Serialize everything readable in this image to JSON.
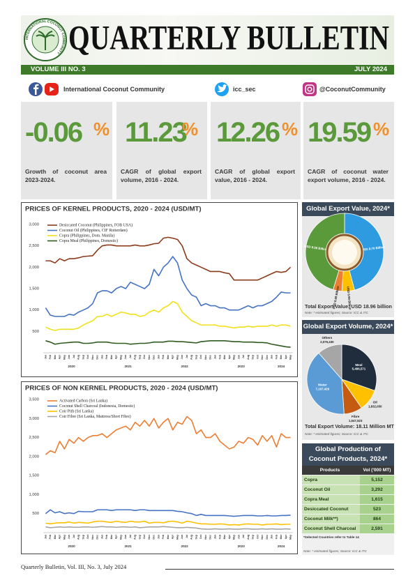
{
  "header": {
    "title": "QUARTERLY BULLETIN",
    "logo_text": "INTERNATIONAL COCONUT COMMUNITY",
    "volume": "VOLUME III NO. 3",
    "date": "JULY 2024"
  },
  "social": [
    {
      "label": "International Coconut Community"
    },
    {
      "label": "icc_sec"
    },
    {
      "label": "@CoconutCommunity"
    }
  ],
  "stats": [
    {
      "value": -0.06,
      "unit": "%",
      "text": "Growth of coconut area 2023-2024."
    },
    {
      "value": 11.23,
      "unit": "%",
      "text": "CAGR of global export volume, 2016 - 2024."
    },
    {
      "value": 12.26,
      "unit": "%",
      "text": "CAGR of global export value, 2016 - 2024."
    },
    {
      "value": 19.59,
      "unit": "%",
      "text": "CAGR of coconut water export volume, 2016 - 2024."
    }
  ],
  "chart_data": [
    {
      "type": "line",
      "title": "PRICES OF KERNEL PRODUCTS, 2020 - 2024 (USD/MT)",
      "categories": [
        "Jan",
        "Feb",
        "Mar",
        "Apr",
        "May",
        "Jun",
        "Jul",
        "Aug",
        "Sep",
        "Oct",
        "Nov",
        "Dec",
        "Jan",
        "Feb",
        "Mar",
        "Apr",
        "May",
        "Jun",
        "Jul",
        "Aug",
        "Sep",
        "Oct",
        "Nov",
        "Dec",
        "Jan",
        "Feb",
        "Mar",
        "Apr",
        "May",
        "Jun",
        "Jul",
        "Aug",
        "Sep",
        "Oct",
        "Nov",
        "Dec",
        "Jan",
        "Feb",
        "Mar",
        "Apr",
        "May",
        "Jun",
        "Jul",
        "Aug",
        "Sep",
        "Oct",
        "Nov",
        "Dec",
        "Jan",
        "Feb",
        "Mar",
        "Apr",
        "May"
      ],
      "year_labels": [
        "2020",
        "2021",
        "2022",
        "2023",
        "2024"
      ],
      "ylim": [
        0,
        3000
      ],
      "yticks": [
        500,
        {
          "value": 1000,
          "label": "1,000"
        },
        {
          "value": 1500,
          "label": "1,500"
        },
        {
          "value": 2000,
          "label": "2,000"
        },
        {
          "value": 2500,
          "label": "2,500"
        },
        {
          "value": 3000,
          "label": "3,000"
        }
      ],
      "grid": false,
      "series": [
        {
          "name": "Desiccated Coconut (Philippines, FOB USA)",
          "color": "#8b3a1a",
          "values": [
            2150,
            2150,
            2100,
            2200,
            2150,
            2200,
            2200,
            2220,
            2250,
            2260,
            2270,
            2400,
            2500,
            2520,
            2520,
            2500,
            2500,
            2500,
            2500,
            2520,
            2500,
            2500,
            2520,
            2550,
            2560,
            2680,
            2700,
            2680,
            2650,
            2500,
            2200,
            2100,
            2050,
            2000,
            1950,
            1900,
            1900,
            1900,
            1870,
            1850,
            1700,
            1700,
            1700,
            1700,
            1700,
            1700,
            1750,
            1800,
            1850,
            1900,
            1880,
            1900,
            2000
          ]
        },
        {
          "name": "Coconut Oil (Philippines, CIF Rotterdam)",
          "color": "#4472c4",
          "values": [
            1050,
            880,
            850,
            850,
            850,
            900,
            880,
            950,
            1000,
            1050,
            1150,
            1400,
            1450,
            1450,
            1400,
            1500,
            1550,
            1500,
            1650,
            1600,
            1550,
            1500,
            1600,
            1950,
            1800,
            2000,
            2100,
            2250,
            2100,
            1700,
            1500,
            1350,
            1300,
            1100,
            1150,
            1100,
            1100,
            1050,
            1050,
            1000,
            1000,
            1000,
            1050,
            1100,
            1050,
            1100,
            1100,
            1150,
            1200,
            1300,
            1420,
            1400,
            1400
          ]
        },
        {
          "name": "Copra (Philippines, Dom. Manila)",
          "color": "#f2e01c",
          "values": [
            600,
            550,
            520,
            550,
            550,
            550,
            550,
            580,
            650,
            700,
            750,
            850,
            850,
            900,
            850,
            900,
            950,
            930,
            900,
            900,
            850,
            870,
            950,
            1000,
            950,
            1050,
            1100,
            1200,
            1150,
            950,
            850,
            750,
            700,
            650,
            650,
            650,
            650,
            620,
            620,
            600,
            580,
            600,
            600,
            620,
            600,
            620,
            620,
            620,
            650,
            620,
            650,
            650,
            620
          ]
        },
        {
          "name": "Copra Meal (Philippines, Domestic)",
          "color": "#2e5a1e",
          "values": [
            280,
            250,
            200,
            220,
            230,
            240,
            250,
            250,
            220,
            220,
            230,
            250,
            250,
            250,
            230,
            220,
            220,
            220,
            200,
            210,
            220,
            220,
            230,
            250,
            250,
            250,
            270,
            270,
            260,
            260,
            250,
            240,
            230,
            260,
            270,
            280,
            280,
            280,
            280,
            270,
            260,
            260,
            250,
            250,
            250,
            240,
            240,
            230,
            200,
            180,
            160,
            140,
            130
          ]
        }
      ]
    },
    {
      "type": "line",
      "title": "PRICES OF NON KERNEL PRODUCTS, 2020 - 2024 (USD/MT)",
      "categories": [
        "Jan",
        "Feb",
        "Mar",
        "Apr",
        "May",
        "Jun",
        "Jul",
        "Aug",
        "Sep",
        "Oct",
        "Nov",
        "Dec",
        "Jan",
        "Feb",
        "Mar",
        "Apr",
        "May",
        "Jun",
        "Jul",
        "Aug",
        "Sep",
        "Oct",
        "Nov",
        "Dec",
        "Jan",
        "Feb",
        "Mar",
        "Apr",
        "May",
        "Jun",
        "Jul",
        "Aug",
        "Sep",
        "Oct",
        "Nov",
        "Dec",
        "Jan",
        "Feb",
        "Mar",
        "Apr",
        "May",
        "Jun",
        "Jul",
        "Aug",
        "Sep",
        "Oct",
        "Nov",
        "Dec",
        "Jan",
        "Feb",
        "Mar",
        "Apr",
        "May"
      ],
      "year_labels": [
        "2020",
        "2021",
        "2022",
        "2023",
        "2024"
      ],
      "ylim": [
        0,
        3500
      ],
      "yticks": [
        500,
        {
          "value": 1000,
          "label": "1,000"
        },
        {
          "value": 1500,
          "label": "1,500"
        },
        {
          "value": 2000,
          "label": "2,000"
        },
        {
          "value": 2500,
          "label": "2,500"
        },
        {
          "value": 3000,
          "label": "3,000"
        },
        {
          "value": 3500,
          "label": "3,500"
        }
      ],
      "grid": false,
      "series": [
        {
          "name": "Activated Carbon (Sri Lanka)",
          "color": "#ed7d31",
          "values": [
            2050,
            2150,
            2100,
            2400,
            2200,
            2450,
            2350,
            2500,
            2400,
            2500,
            2550,
            2550,
            2600,
            2500,
            2600,
            2700,
            2750,
            2800,
            2700,
            2900,
            2800,
            2950,
            2800,
            3000,
            2750,
            2900,
            3000,
            2700,
            2900,
            2850,
            3050,
            2950,
            2600,
            2700,
            2500,
            2500,
            2600,
            2400,
            2300,
            2200,
            2250,
            2400,
            2350,
            2500,
            2450,
            2300,
            2550,
            2400,
            2550,
            2250,
            2600,
            2500,
            2500
          ]
        },
        {
          "name": "Coconut Shell Charcoal (Indonesia, Domestic)",
          "color": "#4472c4",
          "values": [
            500,
            600,
            520,
            550,
            500,
            520,
            500,
            560,
            550,
            550,
            550,
            600,
            600,
            600,
            580,
            600,
            600,
            600,
            600,
            580,
            600,
            600,
            580,
            580,
            580,
            580,
            580,
            580,
            560,
            550,
            520,
            500,
            450,
            480,
            450,
            450,
            450,
            450,
            450,
            440,
            430,
            440,
            450,
            450,
            450,
            440,
            440,
            450,
            440,
            440,
            450,
            450,
            460
          ]
        },
        {
          "name": "Coir Pith (Sri Lanka)",
          "color": "#ffc000",
          "values": [
            250,
            230,
            250,
            260,
            260,
            280,
            250,
            270,
            260,
            250,
            280,
            300,
            300,
            280,
            270,
            300,
            280,
            270,
            300,
            280,
            280,
            300,
            250,
            270,
            270,
            260,
            290,
            300,
            280,
            250,
            300,
            280,
            250,
            230,
            230,
            220,
            220,
            230,
            220,
            200,
            210,
            200,
            220,
            230,
            220,
            220,
            200,
            220,
            220,
            230,
            210,
            220,
            220
          ]
        },
        {
          "name": "Coir Fibre (Sri Lanka, Mattress/Short Fibre)",
          "color": "#a5a5a5",
          "values": [
            150,
            130,
            140,
            150,
            140,
            150,
            140,
            140,
            150,
            150,
            140,
            150,
            160,
            150,
            150,
            140,
            150,
            150,
            140,
            150,
            130,
            140,
            150,
            150,
            150,
            160,
            150,
            140,
            130,
            130,
            140,
            130,
            120,
            100,
            90,
            90,
            100,
            90,
            90,
            100,
            90,
            90,
            100,
            100,
            90,
            90,
            100,
            90,
            100,
            90,
            90,
            100,
            90
          ]
        }
      ]
    },
    {
      "type": "donut",
      "title": "Global Export Value, 2024*",
      "values": [
        8.7,
        0.99,
        0.69,
        8.58
      ],
      "value_labels": [
        "USD 8.70 Billion",
        "USD 0.99 Billion",
        "USD 0.69 Billion",
        "USD 8.58 Billion"
      ],
      "colors": [
        "#2e9be0",
        "#ffc000",
        "#ed7d31",
        "#5a9a3a"
      ]
    },
    {
      "type": "pie",
      "title": "Global Export Volume, 2024*",
      "categories": [
        "Meal",
        "Oil",
        "Fibre",
        "Water",
        "Others"
      ],
      "values": [
        5486571,
        1832050,
        1547523,
        7167426,
        2076430
      ],
      "value_labels": [
        "5,486,571",
        "1,832,050",
        "1,547,523",
        "7,167,426",
        "2,076,430"
      ],
      "colors": [
        "#1f2d3d",
        "#ffc000",
        "#c55a11",
        "#5b9bd5",
        "#a6a6a6"
      ]
    }
  ],
  "export_value": {
    "total": "Total Export Value: USD 18.96 billion",
    "note": "Note: * estimated figures; Source: ICC & ITC"
  },
  "export_volume": {
    "total": "Total Export Volume: 18.11 Million MT",
    "note": "Note: * estimated figures; Source: ICC & ITC"
  },
  "production": {
    "title": "Global Production of Coconut Products, 2024* ('000 MT)",
    "header": [
      "Products",
      "Vol ('000 MT)"
    ],
    "rows": [
      [
        "Copra",
        "5,152"
      ],
      [
        "Coconut Oil",
        "3,292"
      ],
      [
        "Copra Meal",
        "1,615"
      ],
      [
        "Desiccated Coconut",
        "523"
      ],
      [
        "Coconut Milk**)",
        "864"
      ],
      [
        "Coconut Shell Charcoal",
        "2,591"
      ]
    ],
    "footnote": "*Selected Countries refer to Table 14",
    "note": "Note: * estimated figures; Source: ICC & ITC"
  },
  "footer": "Quarterly Bulletin, Vol. III, No. 3, July 2024"
}
